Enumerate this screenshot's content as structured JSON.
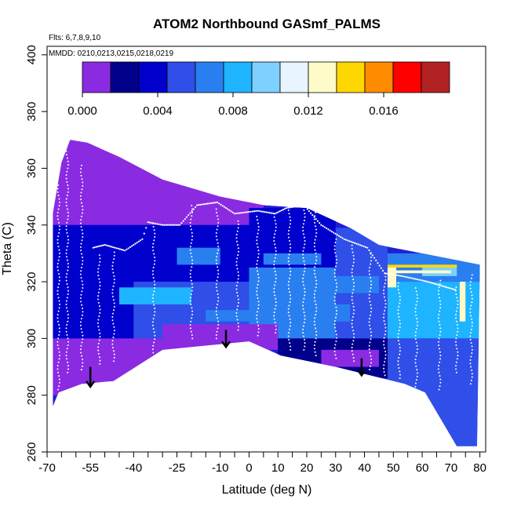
{
  "chart_data": {
    "type": "heatmap",
    "title": "ATOM2 Northbound GASmf_PALMS",
    "annotations": [
      "Flts: 6,7,8,9,10",
      "MMDD: 0210,0213,0215,0218,0219"
    ],
    "xlabel": "Latitude (deg N)",
    "ylabel": "Theta (C)",
    "xlim": [
      -70,
      82
    ],
    "ylim": [
      260,
      403
    ],
    "x_ticks": [
      -70,
      -55,
      -40,
      -25,
      -10,
      0,
      10,
      20,
      30,
      40,
      50,
      60,
      70,
      80
    ],
    "x_tick_labels": [
      "-70",
      "-55",
      "-40",
      "-25",
      "-10",
      "0",
      "10",
      "20",
      "30",
      "40",
      "50",
      "60",
      "70",
      "80"
    ],
    "x_minor_ticks": [
      -65,
      -60,
      -50,
      -45,
      -35,
      -30,
      -20,
      -15,
      -5,
      5,
      15,
      25,
      35,
      45,
      55,
      65,
      75
    ],
    "y_ticks": [
      260,
      280,
      300,
      320,
      340,
      360,
      380,
      400
    ],
    "y_tick_labels": [
      "260",
      "280",
      "300",
      "320",
      "340",
      "360",
      "380",
      "400"
    ],
    "colorbar": {
      "range": [
        0,
        0.0195
      ],
      "tick_values": [
        0.0,
        0.004,
        0.008,
        0.012,
        0.016
      ],
      "tick_labels": [
        "0.000",
        "0.004",
        "0.008",
        "0.012",
        "0.016"
      ],
      "bins": 13,
      "colors": [
        "#8a2be2",
        "#00008b",
        "#0000cd",
        "#2f4fe8",
        "#2a7ff0",
        "#1eb4ff",
        "#7fd0ff",
        "#e8f4ff",
        "#fffbc8",
        "#ffd700",
        "#ff8c00",
        "#ff0000",
        "#b22222"
      ]
    },
    "domain_lower_boundary": [
      {
        "lat": -68,
        "theta": 276
      },
      {
        "lat": -66,
        "theta": 281
      },
      {
        "lat": -58,
        "theta": 284
      },
      {
        "lat": -47,
        "theta": 285
      },
      {
        "lat": -30,
        "theta": 296
      },
      {
        "lat": 0,
        "theta": 299
      },
      {
        "lat": 11,
        "theta": 294
      },
      {
        "lat": 30,
        "theta": 290
      },
      {
        "lat": 46,
        "theta": 286
      },
      {
        "lat": 54,
        "theta": 284
      },
      {
        "lat": 61,
        "theta": 281
      },
      {
        "lat": 72,
        "theta": 262
      },
      {
        "lat": 79,
        "theta": 262
      },
      {
        "lat": 80,
        "theta": 326
      }
    ],
    "domain_upper_boundary": [
      {
        "lat": -68,
        "theta": 344
      },
      {
        "lat": -65,
        "theta": 362
      },
      {
        "lat": -62,
        "theta": 370
      },
      {
        "lat": -56,
        "theta": 369
      },
      {
        "lat": -45,
        "theta": 364
      },
      {
        "lat": -30,
        "theta": 356
      },
      {
        "lat": -10,
        "theta": 350
      },
      {
        "lat": 5,
        "theta": 347
      },
      {
        "lat": 20,
        "theta": 346
      },
      {
        "lat": 35,
        "theta": 339
      },
      {
        "lat": 45,
        "theta": 333
      },
      {
        "lat": 55,
        "theta": 331
      },
      {
        "lat": 65,
        "theta": 329
      },
      {
        "lat": 80,
        "theta": 326
      }
    ],
    "vertical_profiles": [
      {
        "lat": -66,
        "theta_min": 282,
        "theta_max": 355
      },
      {
        "lat": -63,
        "theta_min": 288,
        "theta_max": 368
      },
      {
        "lat": -58,
        "theta_min": 289,
        "theta_max": 362
      },
      {
        "lat": -52,
        "theta_min": 291,
        "theta_max": 330
      },
      {
        "lat": -47,
        "theta_min": 292,
        "theta_max": 331
      },
      {
        "lat": -33,
        "theta_min": 295,
        "theta_max": 341
      },
      {
        "lat": -20,
        "theta_min": 300,
        "theta_max": 347
      },
      {
        "lat": -11,
        "theta_min": 300,
        "theta_max": 346
      },
      {
        "lat": -4,
        "theta_min": 303,
        "theta_max": 342
      },
      {
        "lat": 3,
        "theta_min": 301,
        "theta_max": 344
      },
      {
        "lat": 9,
        "theta_min": 302,
        "theta_max": 345
      },
      {
        "lat": 14,
        "theta_min": 296,
        "theta_max": 347
      },
      {
        "lat": 19,
        "theta_min": 296,
        "theta_max": 346
      },
      {
        "lat": 23,
        "theta_min": 294,
        "theta_max": 345
      },
      {
        "lat": 30,
        "theta_min": 293,
        "theta_max": 335
      },
      {
        "lat": 36,
        "theta_min": 292,
        "theta_max": 333
      },
      {
        "lat": 42,
        "theta_min": 289,
        "theta_max": 330
      },
      {
        "lat": 47,
        "theta_min": 287,
        "theta_max": 324
      },
      {
        "lat": 52,
        "theta_min": 286,
        "theta_max": 320
      },
      {
        "lat": 58,
        "theta_min": 283,
        "theta_max": 318
      },
      {
        "lat": 66,
        "theta_min": 282,
        "theta_max": 321
      },
      {
        "lat": 72,
        "theta_min": 288,
        "theta_max": 319
      },
      {
        "lat": 77,
        "theta_min": 284,
        "theta_max": 323
      }
    ],
    "tropopause_trace": [
      {
        "lat": -54,
        "theta": 332
      },
      {
        "lat": -50,
        "theta": 333
      },
      {
        "lat": -43,
        "theta": 331
      },
      {
        "lat": -37,
        "theta": 335
      },
      {
        "lat": -35,
        "theta": 341
      },
      {
        "lat": -30,
        "theta": 340
      },
      {
        "lat": -24,
        "theta": 340
      },
      {
        "lat": -18,
        "theta": 347
      },
      {
        "lat": -11,
        "theta": 348
      },
      {
        "lat": -5,
        "theta": 344
      },
      {
        "lat": 3,
        "theta": 345
      },
      {
        "lat": 9,
        "theta": 344
      },
      {
        "lat": 13,
        "theta": 346
      },
      {
        "lat": 19,
        "theta": 347
      },
      {
        "lat": 25,
        "theta": 340
      },
      {
        "lat": 33,
        "theta": 335
      },
      {
        "lat": 41,
        "theta": 332
      },
      {
        "lat": 47,
        "theta": 323
      },
      {
        "lat": 53,
        "theta": 322
      },
      {
        "lat": 62,
        "theta": 320
      },
      {
        "lat": 72,
        "theta": 317
      }
    ],
    "arrows": [
      {
        "lat": -55,
        "theta_from": 290,
        "theta_to": 283
      },
      {
        "lat": -8,
        "theta_from": 303,
        "theta_to": 297
      },
      {
        "lat": 39,
        "theta_from": 293,
        "theta_to": 287
      }
    ],
    "cells": [
      {
        "x0": -68,
        "x1": -30,
        "y0": 340,
        "y1": 370,
        "value": 0.0005
      },
      {
        "x0": -30,
        "x1": 5,
        "y0": 340,
        "y1": 356,
        "value": 0.0006
      },
      {
        "x0": -68,
        "x1": -40,
        "y0": 320,
        "y1": 340,
        "value": 0.003
      },
      {
        "x0": -40,
        "x1": 0,
        "y0": 320,
        "y1": 340,
        "value": 0.0035
      },
      {
        "x0": 0,
        "x1": 30,
        "y0": 325,
        "y1": 346,
        "value": 0.003
      },
      {
        "x0": 30,
        "x1": 48,
        "y0": 325,
        "y1": 339,
        "value": 0.0045
      },
      {
        "x0": 48,
        "x1": 80,
        "y0": 320,
        "y1": 330,
        "value": 0.006
      },
      {
        "x0": -68,
        "x1": -40,
        "y0": 300,
        "y1": 320,
        "value": 0.004
      },
      {
        "x0": -40,
        "x1": 0,
        "y0": 300,
        "y1": 320,
        "value": 0.005
      },
      {
        "x0": 0,
        "x1": 30,
        "y0": 300,
        "y1": 325,
        "value": 0.006
      },
      {
        "x0": 30,
        "x1": 48,
        "y0": 300,
        "y1": 325,
        "value": 0.005
      },
      {
        "x0": 48,
        "x1": 80,
        "y0": 300,
        "y1": 320,
        "value": 0.0075
      },
      {
        "x0": -68,
        "x1": -30,
        "y0": 280,
        "y1": 300,
        "value": 0.0003
      },
      {
        "x0": -30,
        "x1": 10,
        "y0": 296,
        "y1": 305,
        "value": 0.0004
      },
      {
        "x0": 10,
        "x1": 48,
        "y0": 286,
        "y1": 300,
        "value": 0.0025
      },
      {
        "x0": 48,
        "x1": 80,
        "y0": 262,
        "y1": 300,
        "value": 0.0045
      },
      {
        "x0": -45,
        "x1": -20,
        "y0": 312,
        "y1": 318,
        "value": 0.0075
      },
      {
        "x0": -25,
        "x1": -10,
        "y0": 326,
        "y1": 332,
        "value": 0.0072
      },
      {
        "x0": 5,
        "x1": 25,
        "y0": 326,
        "y1": 330,
        "value": 0.007
      },
      {
        "x0": 20,
        "x1": 35,
        "y0": 306,
        "y1": 312,
        "value": 0.0072
      },
      {
        "x0": -15,
        "x1": 5,
        "y0": 306,
        "y1": 310,
        "value": 0.0068
      },
      {
        "x0": 30,
        "x1": 45,
        "y0": 316,
        "y1": 322,
        "value": 0.0065
      },
      {
        "x0": 52,
        "x1": 64,
        "y0": 308,
        "y1": 316,
        "value": 0.0082
      },
      {
        "x0": 60,
        "x1": 72,
        "y0": 322,
        "y1": 326,
        "value": 0.009
      },
      {
        "x0": 48,
        "x1": 72,
        "y0": 325,
        "y1": 326,
        "value": 0.0135
      },
      {
        "x0": 50,
        "x1": 70,
        "y0": 323,
        "y1": 324,
        "value": 0.013
      },
      {
        "x0": 48,
        "x1": 51,
        "y0": 318,
        "y1": 325,
        "value": 0.012
      },
      {
        "x0": 73,
        "x1": 75,
        "y0": 306,
        "y1": 320,
        "value": 0.0125
      },
      {
        "x0": -20,
        "x1": 0,
        "y0": 298,
        "y1": 302,
        "value": 0.001
      },
      {
        "x0": 25,
        "x1": 45,
        "y0": 290,
        "y1": 296,
        "value": 0.0008
      }
    ]
  }
}
